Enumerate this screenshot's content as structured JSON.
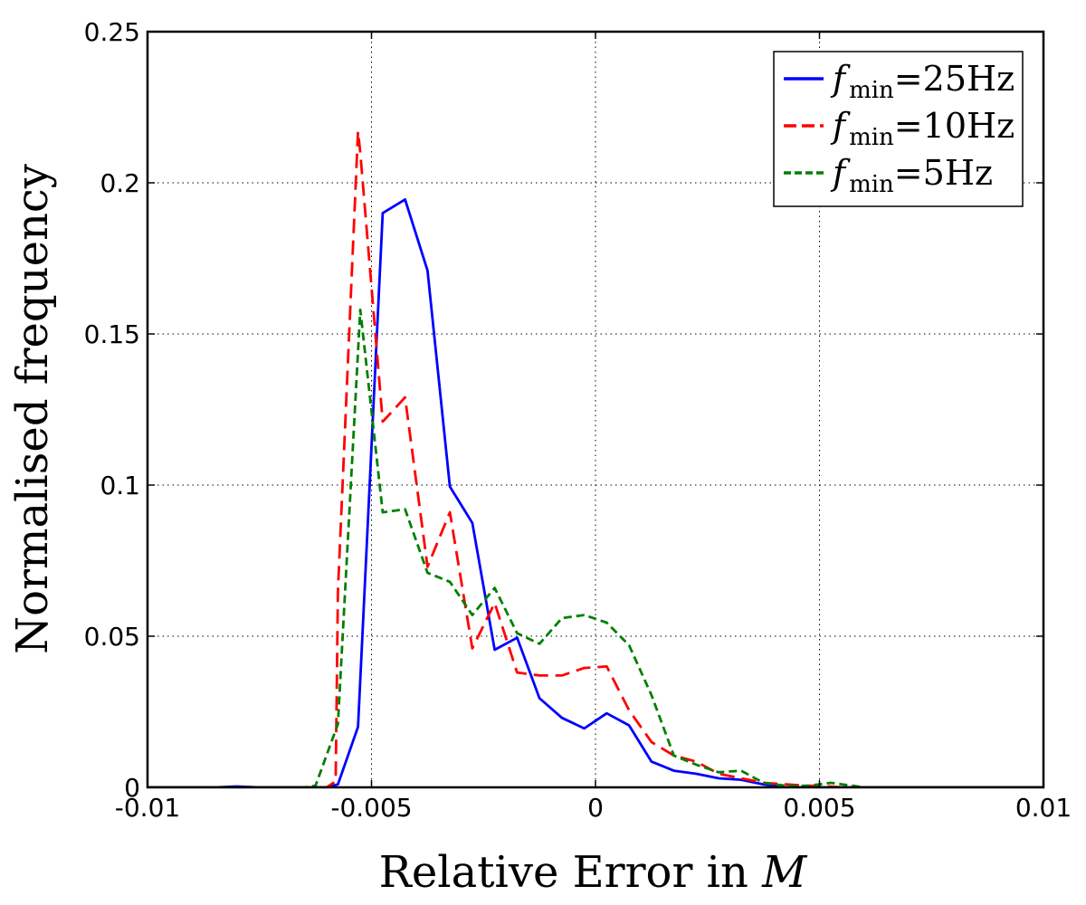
{
  "chart_data": {
    "type": "line",
    "title": "",
    "xlabel_prefix": "Relative Error in ",
    "xlabel_var": "M",
    "ylabel": "Normalised frequency",
    "xlim": [
      -0.01,
      0.01
    ],
    "ylim": [
      0,
      0.25
    ],
    "grid": true,
    "grid_style": "dotted",
    "legend_placement": "top-right",
    "x_ticks": [
      {
        "value": -0.01,
        "label": "-0.01"
      },
      {
        "value": -0.005,
        "label": "-0.005"
      },
      {
        "value": 0,
        "label": "0"
      },
      {
        "value": 0.005,
        "label": "0.005"
      },
      {
        "value": 0.01,
        "label": "0.01"
      }
    ],
    "y_ticks": [
      {
        "value": 0,
        "label": "0"
      },
      {
        "value": 0.05,
        "label": "0.05"
      },
      {
        "value": 0.1,
        "label": "0.1"
      },
      {
        "value": 0.15,
        "label": "0.15"
      },
      {
        "value": 0.2,
        "label": "0.2"
      },
      {
        "value": 0.25,
        "label": "0.25"
      }
    ],
    "series": [
      {
        "name_var": "f",
        "name_sub": "min",
        "name_rest": "=25Hz",
        "color": "#0000ff",
        "dash": "solid",
        "x": [
          -0.01,
          -0.0095,
          -0.009,
          -0.0085,
          -0.008,
          -0.0075,
          -0.007,
          -0.0065,
          -0.006,
          -0.00575,
          -0.0053,
          -0.00475,
          -0.00425,
          -0.00375,
          -0.00325,
          -0.00275,
          -0.00225,
          -0.00175,
          -0.00125,
          -0.00075,
          -0.00025,
          0.00025,
          0.00075,
          0.00125,
          0.00175,
          0.00225,
          0.00275,
          0.00325,
          0.00375,
          0.00425,
          0.005,
          0.006,
          0.007,
          0.008,
          0.009,
          0.01
        ],
        "y": [
          0,
          0,
          0,
          0,
          0.0003,
          0,
          0,
          0,
          0,
          0.001,
          0.02,
          0.19,
          0.1945,
          0.171,
          0.0995,
          0.0875,
          0.0455,
          0.0495,
          0.0295,
          0.023,
          0.0195,
          0.0245,
          0.0205,
          0.0085,
          0.0055,
          0.0045,
          0.003,
          0.0025,
          0.001,
          0,
          0,
          0,
          0,
          0,
          0,
          0
        ]
      },
      {
        "name_var": "f",
        "name_sub": "min",
        "name_rest": "=10Hz",
        "color": "#ff0000",
        "dash": "long-dash",
        "x": [
          -0.01,
          -0.0095,
          -0.009,
          -0.0085,
          -0.008,
          -0.0075,
          -0.007,
          -0.0065,
          -0.006,
          -0.0058,
          -0.00575,
          -0.0053,
          -0.00525,
          -0.00475,
          -0.00425,
          -0.00375,
          -0.00325,
          -0.00275,
          -0.00225,
          -0.00175,
          -0.00125,
          -0.00075,
          -0.00025,
          0.00025,
          0.00075,
          0.00125,
          0.00175,
          0.00225,
          0.00275,
          0.00325,
          0.00375,
          0.00425,
          0.00475,
          0.005,
          0.0055,
          0.006,
          0.007,
          0.008,
          0.009,
          0.01
        ],
        "y": [
          0,
          0,
          0,
          0,
          0,
          0,
          0,
          0,
          0,
          0.002,
          0.065,
          0.217,
          0.21,
          0.121,
          0.129,
          0.073,
          0.091,
          0.046,
          0.061,
          0.038,
          0.037,
          0.037,
          0.0395,
          0.04,
          0.0255,
          0.015,
          0.0105,
          0.0085,
          0.0045,
          0.003,
          0.0015,
          0.001,
          0.0005,
          0.0005,
          0,
          0,
          0,
          0,
          0,
          0
        ]
      },
      {
        "name_var": "f",
        "name_sub": "min",
        "name_rest": "=5Hz",
        "color": "#008000",
        "dash": "short-dash",
        "x": [
          -0.01,
          -0.0095,
          -0.009,
          -0.0085,
          -0.008,
          -0.0075,
          -0.007,
          -0.0065,
          -0.00625,
          -0.00575,
          -0.00525,
          -0.00475,
          -0.00425,
          -0.00375,
          -0.00325,
          -0.00275,
          -0.00225,
          -0.00175,
          -0.00125,
          -0.00075,
          -0.00025,
          0.00025,
          0.00075,
          0.00125,
          0.00175,
          0.00225,
          0.00275,
          0.00325,
          0.00375,
          0.00425,
          0.00475,
          0.00525,
          0.00575,
          0.006,
          0.007,
          0.008,
          0.009,
          0.01
        ],
        "y": [
          0,
          0,
          0,
          0,
          0,
          0,
          0,
          0,
          0.0005,
          0.021,
          0.158,
          0.091,
          0.092,
          0.071,
          0.068,
          0.057,
          0.066,
          0.051,
          0.0475,
          0.056,
          0.057,
          0.0545,
          0.047,
          0.0305,
          0.0105,
          0.0075,
          0.005,
          0.0055,
          0.0015,
          0.0005,
          0.0005,
          0.0015,
          0.0005,
          0,
          0,
          0,
          0,
          0
        ]
      }
    ]
  }
}
